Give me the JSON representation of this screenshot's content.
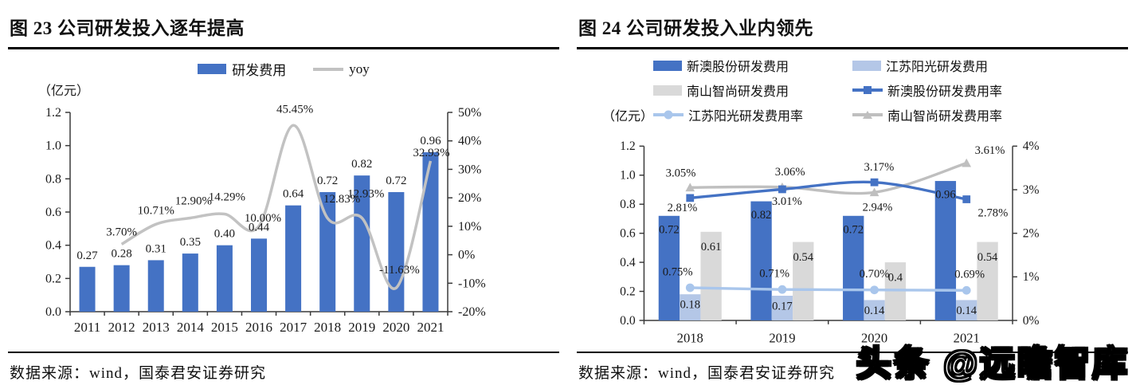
{
  "left_panel": {
    "title": "图 23 公司研发投入逐年提高",
    "source": "数据来源：wind，国泰君安证券研究"
  },
  "right_panel": {
    "title": "图 24 公司研发投入业内领先",
    "source": "数据来源：wind，国泰君安证券研究"
  },
  "watermark": "头条 @远瞻智库",
  "colors": {
    "bar_blue": "#4472C4",
    "bar_light_blue": "#B4C7E7",
    "bar_gray": "#D9D9D9",
    "line_gray": "#C2C2C2",
    "line_light_blue": "#A9C6EC",
    "line_mid_gray": "#BFBFBF",
    "label_blue": "#4472C4",
    "label_gray": "#9B9B9B"
  },
  "chart_data": [
    {
      "type": "bar",
      "subtype": "bar+line combo, dual axis",
      "title": "图 23 公司研发投入逐年提高",
      "unit_label": "（亿元）",
      "categories": [
        "2011",
        "2012",
        "2013",
        "2014",
        "2015",
        "2016",
        "2017",
        "2018",
        "2019",
        "2020",
        "2021"
      ],
      "series": [
        {
          "name": "研发费用",
          "type": "bar",
          "axis": "left",
          "color": "#4472C4",
          "values": [
            0.27,
            0.28,
            0.31,
            0.35,
            0.4,
            0.44,
            0.64,
            0.72,
            0.82,
            0.72,
            0.96
          ],
          "labels": [
            "0.27",
            "0.28",
            "0.31",
            "0.35",
            "0.40",
            "0.44",
            "0.64",
            "0.72",
            "0.82",
            "0.72",
            "0.96"
          ]
        },
        {
          "name": "yoy",
          "type": "line",
          "axis": "right",
          "color": "#C2C2C2",
          "label_color": "#1a1a1a",
          "values": [
            null,
            3.7,
            10.71,
            12.9,
            14.29,
            10.0,
            45.45,
            12.83,
            12.93,
            -11.63,
            32.93
          ],
          "labels": [
            null,
            "3.70%",
            "10.71%",
            "12.90%",
            "14.29%",
            "10.00%",
            "45.45%",
            "12.83%",
            "12.93%",
            "-11.63%",
            "32.93%"
          ]
        }
      ],
      "left_axis": {
        "min": 0,
        "max": 1.2,
        "ticks": [
          "0.0",
          "0.2",
          "0.4",
          "0.6",
          "0.8",
          "1.0",
          "1.2"
        ]
      },
      "right_axis": {
        "min": -20,
        "max": 50,
        "ticks": [
          "-20%",
          "-10%",
          "0%",
          "10%",
          "20%",
          "30%",
          "40%",
          "50%"
        ]
      },
      "legend_position": "top"
    },
    {
      "type": "bar",
      "subtype": "grouped bar+line combo, dual axis",
      "title": "图 24 公司研发投入业内领先",
      "unit_label": "（亿元）",
      "categories": [
        "2018",
        "2019",
        "2020",
        "2021"
      ],
      "series": [
        {
          "name": "新澳股份研发费用",
          "type": "bar",
          "axis": "left",
          "color": "#4472C4",
          "label_color": "#ffffff",
          "values": [
            0.72,
            0.82,
            0.72,
            0.96
          ],
          "labels": [
            "0.72",
            "0.82",
            "0.72",
            "0.96"
          ]
        },
        {
          "name": "江苏阳光研发费用",
          "type": "bar",
          "axis": "left",
          "color": "#B4C7E7",
          "label_color": "#1a1a1a",
          "values": [
            0.18,
            0.17,
            0.14,
            0.14
          ],
          "labels": [
            "0.18",
            "0.17",
            "0.14",
            "0.14"
          ]
        },
        {
          "name": "南山智尚研发费用",
          "type": "bar",
          "axis": "left",
          "color": "#D9D9D9",
          "label_color": "#1a1a1a",
          "values": [
            0.61,
            0.54,
            0.4,
            0.54
          ],
          "labels": [
            "0.61",
            "0.54",
            "0.4",
            "0.54"
          ]
        },
        {
          "name": "新澳股份研发费用率",
          "type": "line",
          "marker": "square",
          "axis": "right",
          "color": "#4472C4",
          "label_color": "#4472C4",
          "values": [
            2.81,
            3.01,
            3.17,
            2.78
          ],
          "labels": [
            "2.81%",
            "3.01%",
            "3.17%",
            "2.78%"
          ]
        },
        {
          "name": "江苏阳光研发费用率",
          "type": "line",
          "marker": "circle",
          "axis": "right",
          "color": "#A9C6EC",
          "label_color": "#1a1a1a",
          "values": [
            0.75,
            0.71,
            0.7,
            0.69
          ],
          "labels": [
            "0.75%",
            "0.71%",
            "0.70%",
            "0.69%"
          ]
        },
        {
          "name": "南山智尚研发费用率",
          "type": "line",
          "marker": "triangle",
          "axis": "right",
          "color": "#BFBFBF",
          "label_color": "#9B9B9B",
          "values": [
            3.05,
            3.06,
            2.94,
            3.61
          ],
          "labels": [
            "3.05%",
            "3.06%",
            "2.94%",
            "3.61%"
          ]
        }
      ],
      "left_axis": {
        "min": 0,
        "max": 1.2,
        "ticks": [
          "0.0",
          "0.2",
          "0.4",
          "0.6",
          "0.8",
          "1.0",
          "1.2"
        ]
      },
      "right_axis": {
        "min": 0,
        "max": 4,
        "ticks": [
          "0%",
          "1%",
          "2%",
          "3%",
          "4%"
        ]
      },
      "legend_position": "top"
    }
  ]
}
